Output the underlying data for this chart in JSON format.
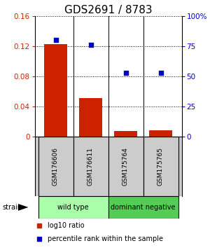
{
  "title": "GDS2691 / 8783",
  "categories": [
    "GSM176606",
    "GSM176611",
    "GSM175764",
    "GSM175765"
  ],
  "bar_values": [
    0.123,
    0.051,
    0.008,
    0.009
  ],
  "scatter_pct": [
    80,
    76,
    53,
    53
  ],
  "ylim_left": [
    0,
    0.16
  ],
  "ylim_right": [
    0,
    100
  ],
  "yticks_left": [
    0,
    0.04,
    0.08,
    0.12,
    0.16
  ],
  "ytick_labels_left": [
    "0",
    "0.04",
    "0.08",
    "0.12",
    "0.16"
  ],
  "ytick_labels_right": [
    "0",
    "25",
    "50",
    "75",
    "100%"
  ],
  "yticks_right": [
    0,
    25,
    50,
    75,
    100
  ],
  "bar_color": "#cc2200",
  "scatter_color": "#0000cc",
  "groups": [
    {
      "label": "wild type",
      "indices": [
        0,
        1
      ],
      "color": "#aaffaa"
    },
    {
      "label": "dominant negative",
      "indices": [
        2,
        3
      ],
      "color": "#55cc55"
    }
  ],
  "legend_items": [
    {
      "color": "#cc2200",
      "label": "log10 ratio"
    },
    {
      "color": "#0000cc",
      "label": "percentile rank within the sample"
    }
  ],
  "strain_label": "strain",
  "bg_color": "#ffffff",
  "sample_bg": "#cccccc",
  "bar_width": 0.65,
  "title_fontsize": 11,
  "tick_fontsize": 7.5,
  "cat_fontsize": 6.5,
  "group_fontsize": 7,
  "legend_fontsize": 7
}
